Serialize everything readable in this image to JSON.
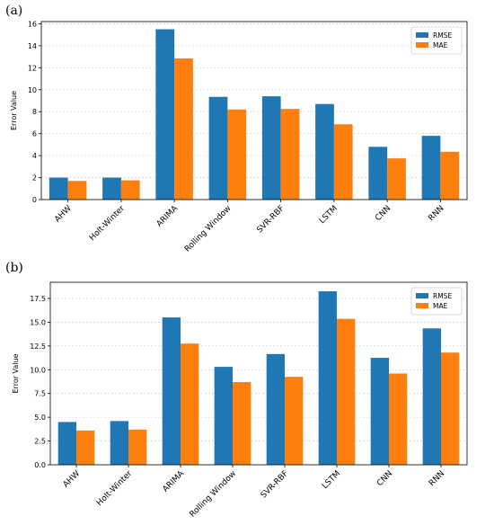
{
  "panels": [
    {
      "label": "(a)"
    },
    {
      "label": "(b)"
    }
  ],
  "colors": {
    "RMSE": "#1f77b4",
    "MAE": "#ff7f0e",
    "grid": "#cccccc"
  },
  "chart_data": [
    {
      "type": "bar",
      "title": "",
      "xlabel": "",
      "ylabel": "Error Value",
      "categories": [
        "AHW",
        "Holt-Winter",
        "ARIMA",
        "Rolling Window",
        "SVR-RBF",
        "LSTM",
        "CNN",
        "RNN"
      ],
      "series": [
        {
          "name": "RMSE",
          "values": [
            2.0,
            2.0,
            15.5,
            9.35,
            9.4,
            8.7,
            4.8,
            5.8
          ]
        },
        {
          "name": "MAE",
          "values": [
            1.7,
            1.75,
            12.85,
            8.2,
            8.25,
            6.85,
            3.75,
            4.35
          ]
        }
      ],
      "ylim": [
        0,
        16.2
      ],
      "yticks": [
        "0",
        "2",
        "4",
        "6",
        "8",
        "10",
        "12",
        "14",
        "16"
      ],
      "ytick_values": [
        0,
        2,
        4,
        6,
        8,
        10,
        12,
        14,
        16
      ],
      "grid": "horizontal",
      "legend": "top-right"
    },
    {
      "type": "bar",
      "title": "",
      "xlabel": "",
      "ylabel": "Error Value",
      "categories": [
        "AHW",
        "Holt-Winter",
        "ARIMA",
        "Rolling Window",
        "SVR-RBF",
        "LSTM",
        "CNN",
        "RNN"
      ],
      "series": [
        {
          "name": "RMSE",
          "values": [
            4.5,
            4.6,
            15.5,
            10.3,
            11.65,
            18.25,
            11.25,
            14.35
          ]
        },
        {
          "name": "MAE",
          "values": [
            3.6,
            3.7,
            12.75,
            8.7,
            9.25,
            15.35,
            9.6,
            11.8
          ]
        }
      ],
      "ylim": [
        0,
        19.2
      ],
      "yticks": [
        "0.0",
        "2.5",
        "5.0",
        "7.5",
        "10.0",
        "12.5",
        "15.0",
        "17.5"
      ],
      "ytick_values": [
        0,
        2.5,
        5,
        7.5,
        10,
        12.5,
        15,
        17.5
      ],
      "grid": "horizontal",
      "legend": "top-right"
    }
  ]
}
